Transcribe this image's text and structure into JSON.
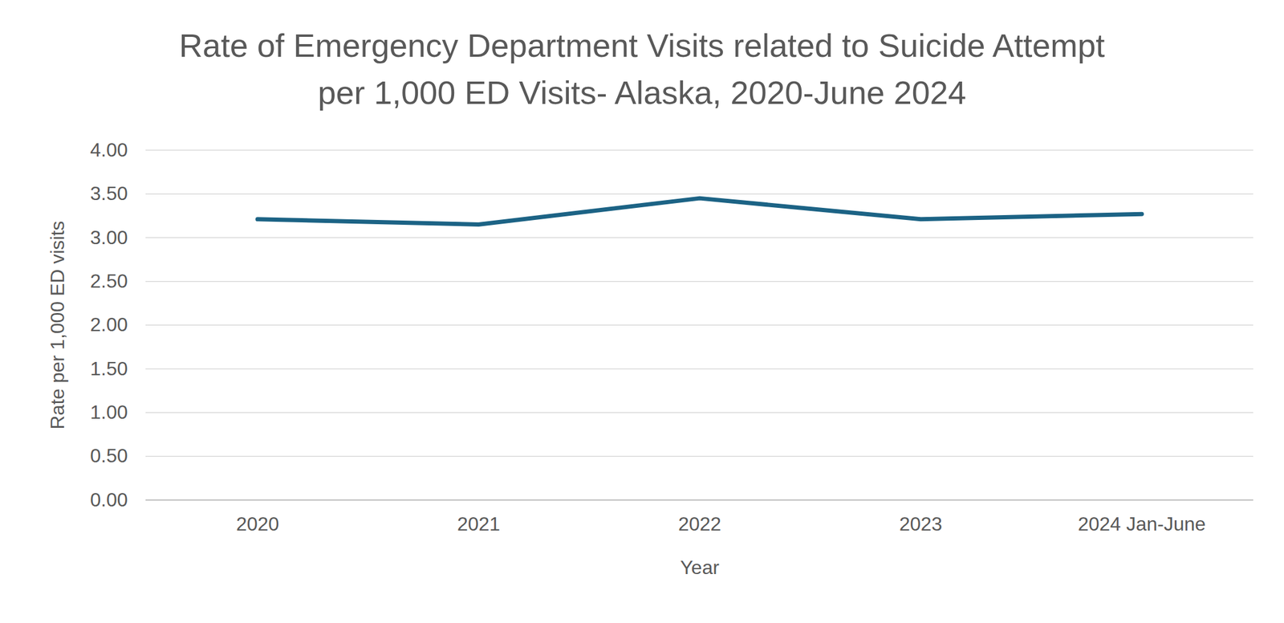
{
  "chart_data": {
    "type": "line",
    "title": "Rate of Emergency Department Visits related to Suicide Attempt per 1,000 ED Visits- Alaska, 2020-June 2024",
    "x_label": "Year",
    "y_label": "Rate per 1,000 ED visits",
    "categories": [
      "2020",
      "2021",
      "2022",
      "2023",
      "2024 Jan-June"
    ],
    "values": [
      3.21,
      3.15,
      3.45,
      3.21,
      3.27
    ],
    "color": "#1c6385",
    "ylim": [
      0,
      4
    ],
    "yticks": [
      {
        "value": 0,
        "label": "0.00"
      },
      {
        "value": 0.5,
        "label": "0.50"
      },
      {
        "value": 1,
        "label": "1.00"
      },
      {
        "value": 1.5,
        "label": "1.50"
      },
      {
        "value": 2,
        "label": "2.00"
      },
      {
        "value": 2.5,
        "label": "2.50"
      },
      {
        "value": 3,
        "label": "3.00"
      },
      {
        "value": 3.5,
        "label": "3.50"
      },
      {
        "value": 4,
        "label": "4.00"
      }
    ],
    "grid": true
  }
}
